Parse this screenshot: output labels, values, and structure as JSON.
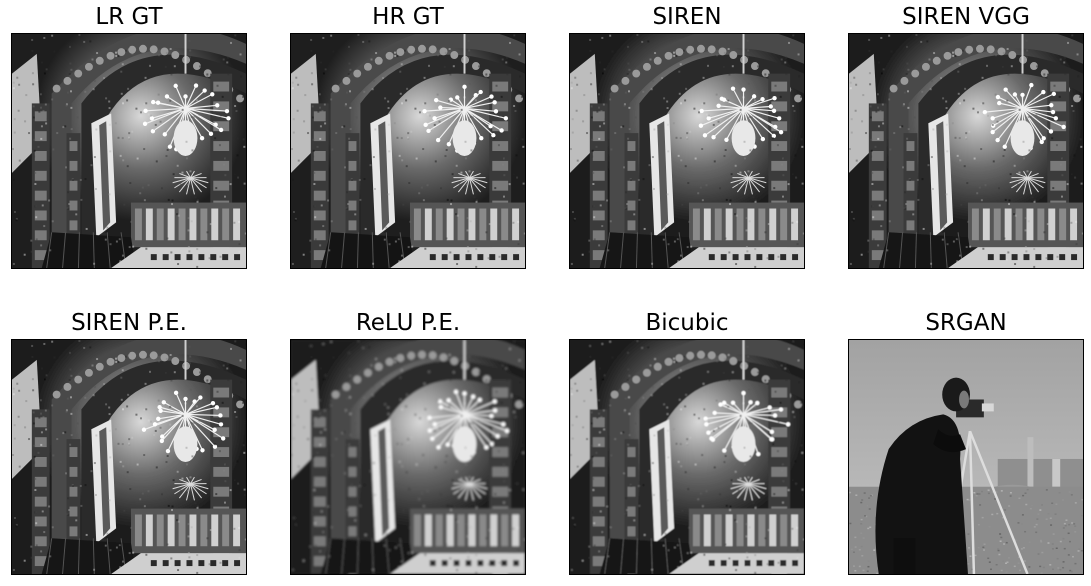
{
  "panels": [
    {
      "title": "LR GT",
      "image": "church-interior-chandelier-grayscale",
      "blur": 0.0
    },
    {
      "title": "HR GT",
      "image": "church-interior-chandelier-grayscale",
      "blur": 0.0
    },
    {
      "title": "SIREN",
      "image": "church-interior-chandelier-grayscale",
      "blur": 0.3
    },
    {
      "title": "SIREN VGG",
      "image": "church-interior-chandelier-grayscale",
      "blur": 0.3
    },
    {
      "title": "SIREN P.E.",
      "image": "church-interior-chandelier-grayscale",
      "blur": 0.3
    },
    {
      "title": "ReLU P.E.",
      "image": "church-interior-chandelier-grayscale",
      "blur": 1.2
    },
    {
      "title": "Bicubic",
      "image": "church-interior-chandelier-grayscale",
      "blur": 0.6
    },
    {
      "title": "SRGAN",
      "image": "cameraman-tripod-grayscale",
      "blur": 0.0
    }
  ]
}
